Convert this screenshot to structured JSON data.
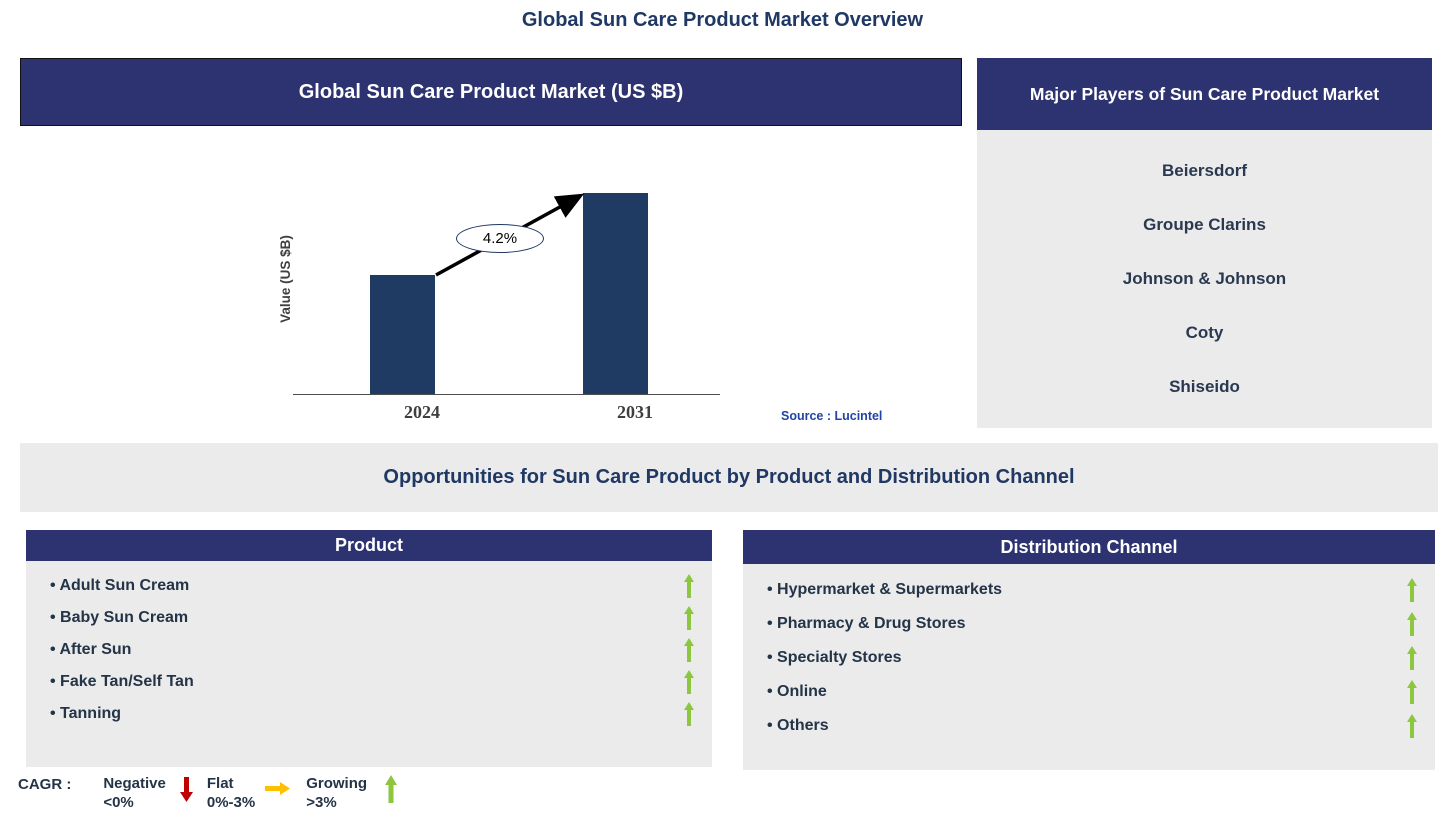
{
  "page_title": "Global Sun Care Product Market Overview",
  "market_chart": {
    "header": "Global Sun Care Product Market (US $B)",
    "y_axis_label": "Value (US $B)",
    "cagr_label": "4.2%",
    "source": "Source : Lucintel"
  },
  "chart_data": {
    "type": "bar",
    "title": "Global Sun Care Product Market (US $B)",
    "categories": [
      "2024",
      "2031"
    ],
    "values_relative": [
      0.59,
      1.0
    ],
    "value_axis_labeled": false,
    "ylabel": "Value (US $B)",
    "xlabel": "",
    "annotation": "4.2%",
    "annotation_style": "ellipse on growth arrow between bars",
    "bar_color": "#1F3A63",
    "grid": false,
    "legend_position": "none",
    "source": "Source : Lucintel"
  },
  "major_players": {
    "header": "Major Players of Sun Care Product Market",
    "items": [
      "Beiersdorf",
      "Groupe Clarins",
      "Johnson & Johnson",
      "Coty",
      "Shiseido"
    ]
  },
  "opportunities_banner": "Opportunities for Sun Care Product by Product and Distribution Channel",
  "product_panel": {
    "header": "Product",
    "items": [
      {
        "label": "Adult Sun Cream",
        "trend": "growing"
      },
      {
        "label": "Baby Sun Cream",
        "trend": "growing"
      },
      {
        "label": "After Sun",
        "trend": "growing"
      },
      {
        "label": "Fake Tan/Self Tan",
        "trend": "growing"
      },
      {
        "label": "Tanning",
        "trend": "growing"
      }
    ]
  },
  "distribution_panel": {
    "header": "Distribution Channel",
    "items": [
      {
        "label": "Hypermarket & Supermarkets",
        "trend": "growing"
      },
      {
        "label": "Pharmacy & Drug Stores",
        "trend": "growing"
      },
      {
        "label": "Specialty Stores",
        "trend": "growing"
      },
      {
        "label": "Online",
        "trend": "growing"
      },
      {
        "label": "Others",
        "trend": "growing"
      }
    ]
  },
  "legend": {
    "title": "CAGR :",
    "entries": [
      {
        "label": "Negative",
        "range": "<0%",
        "trend_icon": "down-arrow",
        "color": "#C00000"
      },
      {
        "label": "Flat",
        "range": "0%-3%",
        "trend_icon": "right-arrow",
        "color": "#FFC000"
      },
      {
        "label": "Growing",
        "range": ">3%",
        "trend_icon": "up-arrow",
        "color": "#8DC63F"
      }
    ]
  },
  "colors": {
    "header_navy": "#2D3270",
    "title_navy": "#1F3864",
    "bar_navy": "#1F3A63",
    "panel_gray": "#EBEBEB",
    "list_text": "#243447",
    "growing_green": "#8DC63F",
    "negative_red": "#C00000",
    "flat_yellow": "#FFC000",
    "source_blue": "#2144A8"
  }
}
